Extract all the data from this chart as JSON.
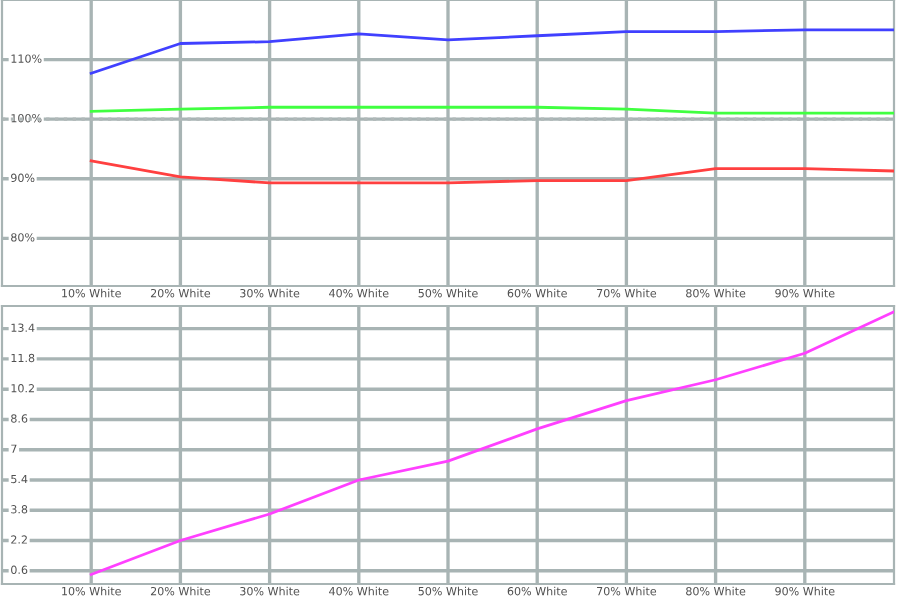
{
  "chart_data": [
    {
      "type": "line",
      "x": [
        10,
        20,
        30,
        40,
        50,
        60,
        70,
        80,
        90,
        100
      ],
      "xlim": [
        0,
        100
      ],
      "xticks": [
        {
          "value": 10,
          "label": "10% White"
        },
        {
          "value": 20,
          "label": "20% White"
        },
        {
          "value": 30,
          "label": "30% White"
        },
        {
          "value": 40,
          "label": "40% White"
        },
        {
          "value": 50,
          "label": "50% White"
        },
        {
          "value": 60,
          "label": "60% White"
        },
        {
          "value": 70,
          "label": "70% White"
        },
        {
          "value": 80,
          "label": "80% White"
        },
        {
          "value": 90,
          "label": "90% White"
        }
      ],
      "ylim": [
        72,
        120
      ],
      "yticks": [
        {
          "value": 80,
          "label": "80%"
        },
        {
          "value": 90,
          "label": "90%"
        },
        {
          "value": 100,
          "label": "100%"
        },
        {
          "value": 110,
          "label": "110%"
        }
      ],
      "grid": true,
      "legend": false,
      "marker": "none",
      "line_style": "solid",
      "ref_lines": [
        {
          "axis": "y",
          "value": 100,
          "line_style": "dotted",
          "color": "#b0b8b8"
        }
      ],
      "series": [
        {
          "color": "#4040ff",
          "values": [
            107.7,
            112.7,
            113,
            114.3,
            113.3,
            114,
            114.7,
            114.7,
            115,
            115
          ]
        },
        {
          "color": "#40ff40",
          "values": [
            101.3,
            101.7,
            102,
            102,
            102,
            102,
            101.7,
            101,
            101,
            101
          ]
        },
        {
          "color": "#ff4040",
          "values": [
            93,
            90.3,
            89.3,
            89.3,
            89.3,
            89.7,
            89.7,
            91.7,
            91.7,
            91.3
          ]
        }
      ]
    },
    {
      "type": "line",
      "x": [
        10,
        20,
        30,
        40,
        50,
        60,
        70,
        80,
        90,
        100
      ],
      "xlim": [
        0,
        100
      ],
      "xticks": [
        {
          "value": 10,
          "label": "10% White"
        },
        {
          "value": 20,
          "label": "20% White"
        },
        {
          "value": 30,
          "label": "30% White"
        },
        {
          "value": 40,
          "label": "40% White"
        },
        {
          "value": 50,
          "label": "50% White"
        },
        {
          "value": 60,
          "label": "60% White"
        },
        {
          "value": 70,
          "label": "70% White"
        },
        {
          "value": 80,
          "label": "80% White"
        },
        {
          "value": 90,
          "label": "90% White"
        }
      ],
      "ylim": [
        -0.1,
        14.6
      ],
      "yticks": [
        0.6,
        2.2,
        3.8,
        5.4,
        7,
        8.6,
        10.2,
        11.8,
        13.4
      ],
      "grid": true,
      "legend": false,
      "marker": "none",
      "line_style": "solid",
      "series": [
        {
          "color": "#ff40ff",
          "values": [
            0.4,
            2.2,
            3.6,
            5.4,
            6.4,
            8.1,
            9.6,
            10.7,
            12.1,
            14.3
          ]
        }
      ]
    }
  ]
}
